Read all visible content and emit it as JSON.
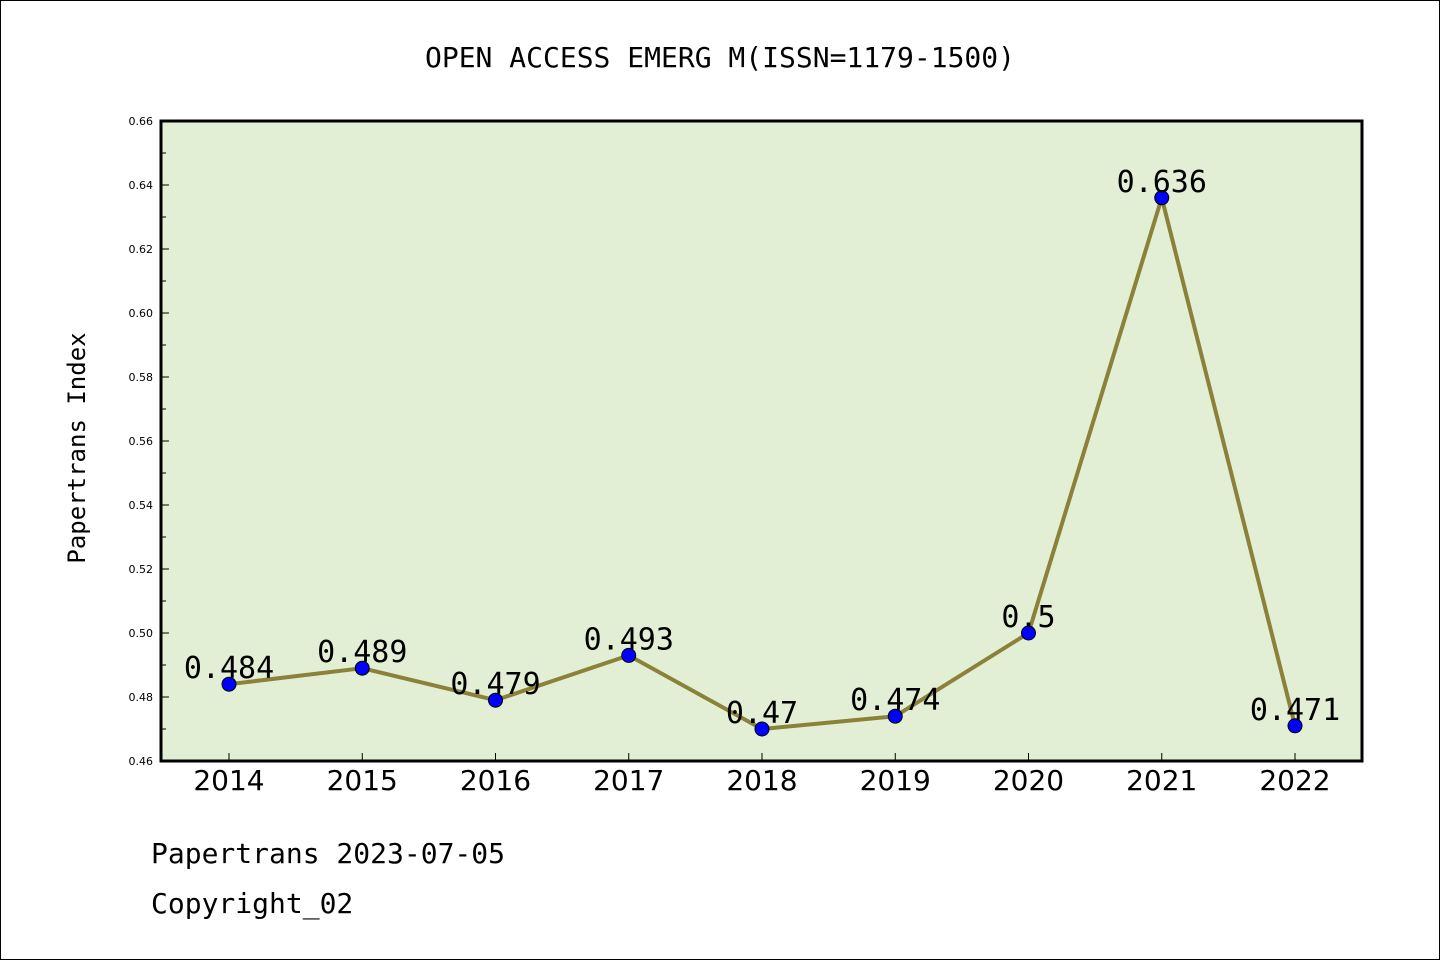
{
  "chart_data": {
    "type": "line",
    "title": "OPEN ACCESS EMERG M(ISSN=1179-1500)",
    "xlabel": "",
    "ylabel": "Papertrans Index",
    "categories": [
      "2014",
      "2015",
      "2016",
      "2017",
      "2018",
      "2019",
      "2020",
      "2021",
      "2022"
    ],
    "series": [
      {
        "values": [
          0.484,
          0.489,
          0.479,
          0.493,
          0.47,
          0.474,
          0.5,
          0.636,
          0.471
        ]
      }
    ],
    "data_labels": [
      "0.484",
      "0.489",
      "0.479",
      "0.493",
      "0.47",
      "0.474",
      "0.5",
      "0.636",
      "0.471"
    ],
    "ylim": [
      0.46,
      0.66
    ],
    "yticks": [
      "0.46",
      "0.48",
      "0.50",
      "0.52",
      "0.54",
      "0.56",
      "0.58",
      "0.60",
      "0.62",
      "0.64",
      "0.66"
    ],
    "grid": false,
    "legend": "none",
    "colors": {
      "plot_background": "#e2efd5",
      "line": "#8b8139",
      "marker": "#0000ff",
      "axes": "#000000"
    }
  },
  "footer": {
    "line1": "Papertrans 2023-07-05",
    "line2": "Copyright_02"
  }
}
